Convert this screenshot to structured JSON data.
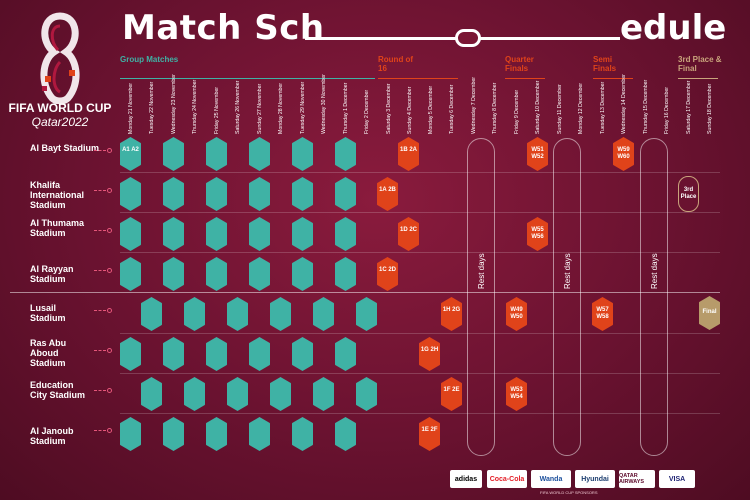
{
  "title": {
    "left": "Match Sch",
    "right": "edule"
  },
  "brand": {
    "line1": "FIFA WORLD CUP",
    "line2": "Qatar2022"
  },
  "phases": {
    "group": "Group Matches",
    "r16": "Round of 16",
    "qf": "Quarter Finals",
    "sf": "Semi Finals",
    "final": "3rd Place & Final"
  },
  "dates": [
    "Monday 21 November",
    "Tuesday 22 November",
    "Wednesday 23 November",
    "Thursday 24 November",
    "Friday 25 November",
    "Saturday 26 November",
    "Sunday 27 November",
    "Monday 28 November",
    "Tuesday 29 November",
    "Wednesday 30 November",
    "Thursday 1 December",
    "Friday 2 December",
    "Saturday 3 December",
    "Sunday 4 December",
    "Monday 5 December",
    "Tuesday 6 December",
    "Wednesday 7 December",
    "Thursday 8 December",
    "Friday 9 December",
    "Saturday 10 December",
    "Sunday 11 December",
    "Monday 12 December",
    "Tuesday 13 December",
    "Wednesday 14 December",
    "Thursday 15 December",
    "Friday 16 December",
    "Saturday 17 December",
    "Sunday 18 December"
  ],
  "stadiums": [
    "Al Bayt Stadium",
    "Khalifa International Stadium",
    "Al Thumama Stadium",
    "Al Rayyan Stadium",
    "Lusail Stadium",
    "Ras Abu Aboud Stadium",
    "Education City Stadium",
    "Al Janoub Stadium"
  ],
  "rest_days": "Rest days",
  "first_match": "A1 A2",
  "knockout": {
    "bayt_r16": "1B 2A",
    "khalifa_r16": "1A 2B",
    "thumama_r16": "1D 2C",
    "rayyan_r16": "1C 2D",
    "lusail_r16": "1H 2G",
    "rasabu_r16": "1G 2H",
    "edu_r16": "1F 2E",
    "janoub_r16": "1E 2F",
    "bayt_qf": "W51 W52",
    "thumama_qf": "W55 W56",
    "lusail_qf": "W49 W50",
    "edu_qf": "W53 W54",
    "bayt_sf": "W59 W60",
    "lusail_sf": "W57 W58",
    "third": "3rd Place",
    "final": "Final"
  },
  "sponsors": [
    "adidas",
    "Coca-Cola",
    "Wanda",
    "Hyundai",
    "QATAR AIRWAYS",
    "VISA"
  ],
  "sponsor_caption": "FIFA WORLD CUP SPONSORS",
  "colors": {
    "background": "#6e1430",
    "group": "#3fb2a5",
    "knockout": "#e0431a",
    "final": "#b79b6a",
    "accent": "#e5567a"
  }
}
